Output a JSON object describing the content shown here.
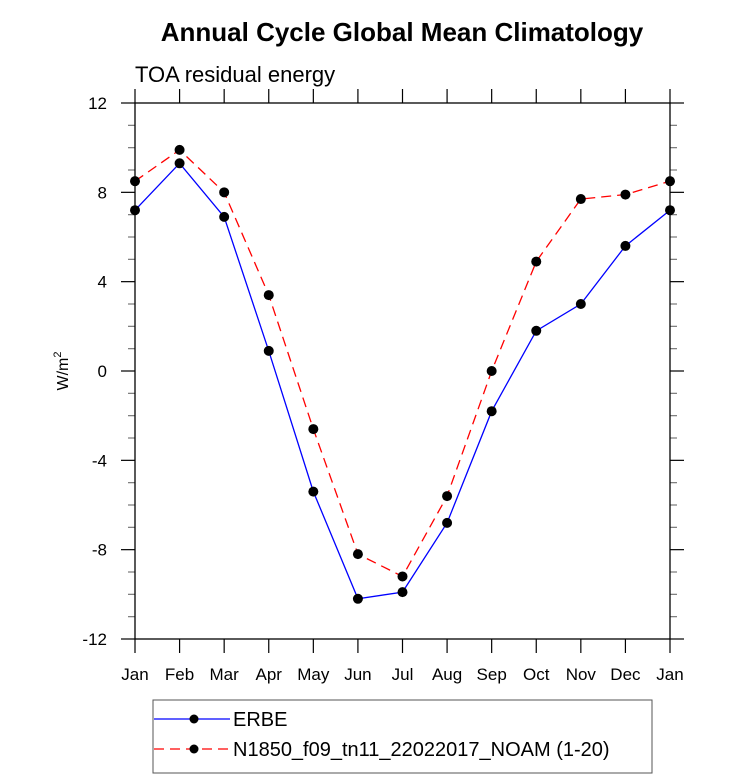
{
  "chart_data": {
    "type": "line",
    "title": "Annual Cycle Global Mean Climatology",
    "subtitle": "TOA residual energy",
    "xlabel": "",
    "ylabel": "W/m",
    "ylabel_superscript": "2",
    "categories": [
      "Jan",
      "Feb",
      "Mar",
      "Apr",
      "May",
      "Jun",
      "Jul",
      "Aug",
      "Sep",
      "Oct",
      "Nov",
      "Dec",
      "Jan"
    ],
    "ylim": [
      -12,
      12
    ],
    "yticks": [
      -12,
      -8,
      -4,
      0,
      4,
      8,
      12
    ],
    "yticks_minor_step": 1,
    "grid": false,
    "legend_position": "bottom",
    "series": [
      {
        "name": "ERBE",
        "color": "#0000ff",
        "line_style": "solid",
        "marker": "filled-circle",
        "marker_color": "#000000",
        "values": [
          7.2,
          9.3,
          6.9,
          0.9,
          -5.4,
          -10.2,
          -9.9,
          -6.8,
          -1.8,
          1.8,
          3.0,
          5.6,
          7.2
        ]
      },
      {
        "name": "N1850_f09_tn11_22022017_NOAM (1-20)",
        "color": "#ff0000",
        "line_style": "dashed",
        "marker": "filled-circle",
        "marker_color": "#000000",
        "values": [
          8.5,
          9.9,
          8.0,
          3.4,
          -2.6,
          -8.2,
          -9.2,
          -5.6,
          0.0,
          4.9,
          7.7,
          7.9,
          8.5
        ]
      }
    ]
  }
}
